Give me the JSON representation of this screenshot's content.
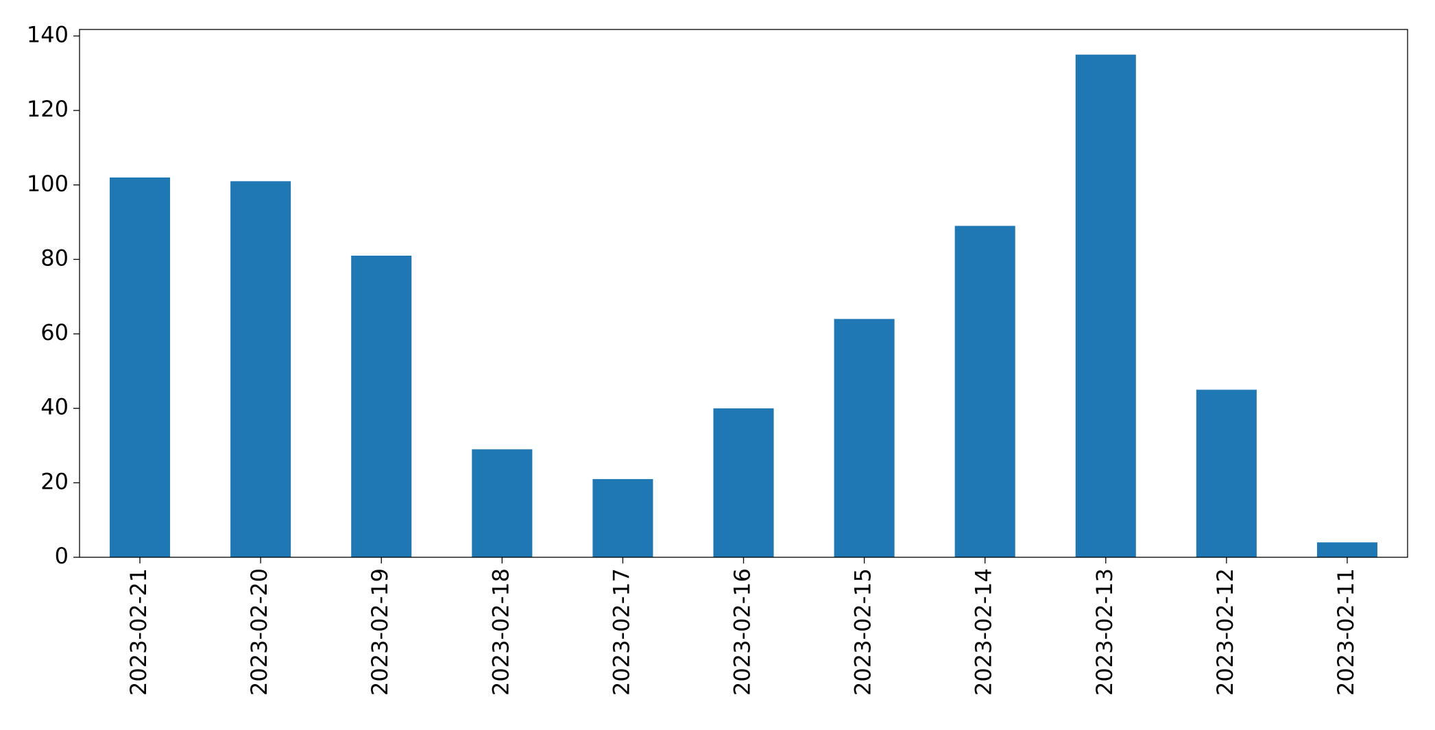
{
  "chart_data": {
    "type": "bar",
    "categories": [
      "2023-02-21",
      "2023-02-20",
      "2023-02-19",
      "2023-02-18",
      "2023-02-17",
      "2023-02-16",
      "2023-02-15",
      "2023-02-14",
      "2023-02-13",
      "2023-02-12",
      "2023-02-11"
    ],
    "values": [
      102,
      101,
      81,
      29,
      21,
      40,
      64,
      89,
      135,
      45,
      4
    ],
    "color": "#1f77b4",
    "ylim": [
      0,
      141.75
    ],
    "yticks": [
      0,
      20,
      40,
      60,
      80,
      100,
      120,
      140
    ],
    "grid": false
  }
}
